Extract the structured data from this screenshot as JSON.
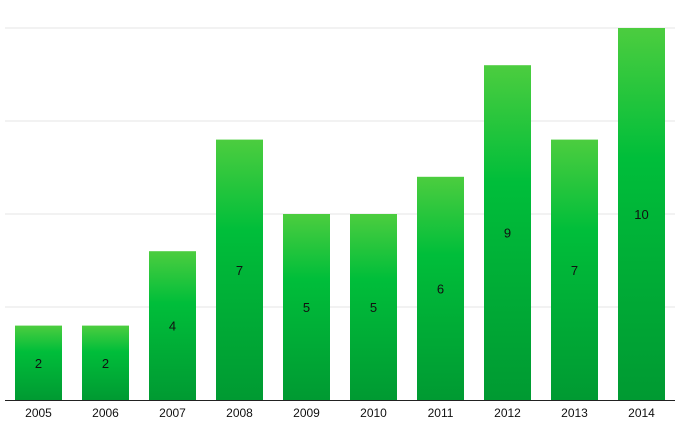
{
  "chart_data": {
    "type": "bar",
    "title": "",
    "xlabel": "",
    "ylabel": "",
    "categories": [
      "2005",
      "2006",
      "2007",
      "2008",
      "2009",
      "2010",
      "2011",
      "2012",
      "2013",
      "2014"
    ],
    "values": [
      2,
      2,
      4,
      7,
      5,
      5,
      6,
      9,
      7,
      10
    ],
    "ylim": [
      0,
      10
    ],
    "gridlines": [
      0,
      2.5,
      5,
      7.5,
      10
    ],
    "grid": true,
    "legend": "none",
    "colors": {
      "bar_top": "#4ccd3f",
      "bar_mid": "#00be3a",
      "bar_bottom": "#009a32",
      "grid": "#e6e6e6",
      "axis": "#222222",
      "label": "#111111"
    }
  }
}
